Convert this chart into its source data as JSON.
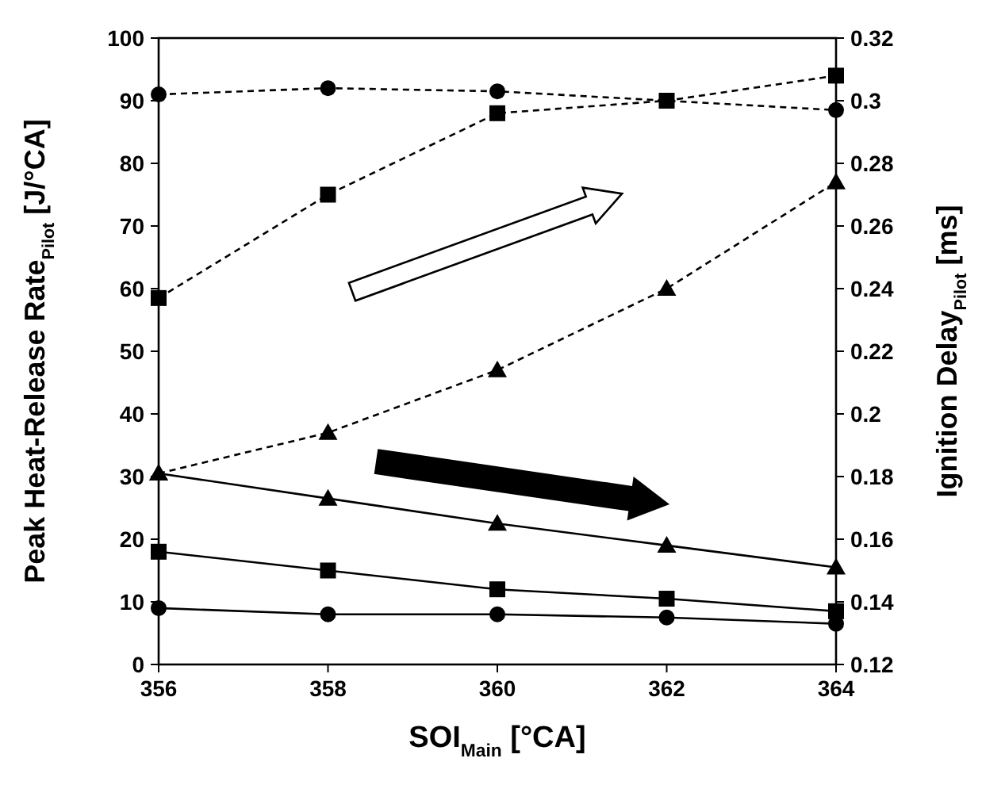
{
  "chart_data": {
    "type": "line",
    "xlabel": "SOI$_{Main}$ [°CA]",
    "ylabel": "Peak Heat-Release Rate$_{Pilot}$ [J/°CA]",
    "y2label": "Ignition Delay$_{Pilot}$ [ms]",
    "x": [
      356,
      358,
      360,
      362,
      364
    ],
    "xlim": [
      356,
      364
    ],
    "xticks": [
      356,
      358,
      360,
      362,
      364
    ],
    "ylim": [
      0,
      100
    ],
    "yticks": [
      0,
      10,
      20,
      30,
      40,
      50,
      60,
      70,
      80,
      90,
      100
    ],
    "y2lim": [
      0.12,
      0.32
    ],
    "y2ticks": [
      {
        "value": 0.12,
        "label": "0.12"
      },
      {
        "value": 0.14,
        "label": "0.14"
      },
      {
        "value": 0.16,
        "label": "0.16"
      },
      {
        "value": 0.18,
        "label": "0.18"
      },
      {
        "value": 0.2,
        "label": "0.2"
      },
      {
        "value": 0.22,
        "label": "0.22"
      },
      {
        "value": 0.24,
        "label": "0.24"
      },
      {
        "value": 0.26,
        "label": "0.26"
      },
      {
        "value": 0.28,
        "label": "0.28"
      },
      {
        "value": 0.3,
        "label": "0.3"
      },
      {
        "value": 0.32,
        "label": "0.32"
      }
    ],
    "grid": false,
    "series": [
      {
        "color": "#000000",
        "marker": "circle",
        "line_style": "solid",
        "values": [
          9,
          8,
          8,
          7.5,
          6.5
        ]
      },
      {
        "color": "#000000",
        "marker": "square",
        "line_style": "solid",
        "values": [
          18,
          15,
          12,
          10.5,
          8.5
        ]
      },
      {
        "color": "#000000",
        "marker": "triangle",
        "line_style": "solid",
        "values": [
          30.5,
          26.5,
          22.5,
          19,
          15.5
        ]
      },
      {
        "color": "#000000",
        "marker": "circle",
        "line_style": "dashed",
        "axis": "y2",
        "values": [
          0.302,
          0.304,
          0.303,
          0.3,
          0.297
        ]
      },
      {
        "color": "#000000",
        "marker": "square",
        "line_style": "dashed",
        "axis": "y2",
        "values": [
          0.237,
          0.27,
          0.296,
          0.3,
          0.308
        ]
      },
      {
        "color": "#000000",
        "marker": "triangle",
        "line_style": "dashed",
        "axis": "y2",
        "values": [
          0.181,
          0.194,
          0.214,
          0.24,
          0.274
        ]
      }
    ]
  }
}
